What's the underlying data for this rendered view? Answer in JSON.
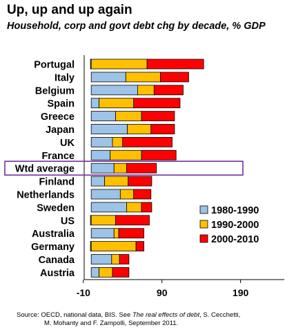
{
  "chart_data": {
    "type": "bar",
    "stacked": true,
    "orientation": "horizontal",
    "title": "Up, up and up again",
    "subtitle": "Household, corp and govt debt chg by decade, % GDP",
    "categories": [
      "Portugal",
      "Italy",
      "Belgium",
      "Spain",
      "Greece",
      "Japan",
      "UK",
      "France",
      "Wtd average",
      "Finland",
      "Netherlands",
      "Sweden",
      "US",
      "Australia",
      "Germany",
      "Canada",
      "Austria"
    ],
    "series": [
      {
        "name": "1980-1990",
        "color": "#9dc3e6",
        "values": [
          -1,
          44,
          59,
          10,
          31,
          46,
          27,
          24,
          29,
          17,
          37,
          45,
          -1,
          29,
          -1,
          26,
          10
        ]
      },
      {
        "name": "1990-2000",
        "color": "#ffc000",
        "values": [
          71,
          44,
          21,
          44,
          33,
          30,
          13,
          40,
          16,
          30,
          17,
          19,
          31,
          6,
          57,
          10,
          17
        ]
      },
      {
        "name": "2000-2010",
        "color": "#ff0000",
        "values": [
          72,
          36,
          37,
          59,
          42,
          30,
          63,
          44,
          38,
          30,
          22,
          13,
          43,
          32,
          10,
          12,
          21
        ]
      }
    ],
    "ticks": [
      "-10",
      "90",
      "190"
    ],
    "xlim": [
      -10,
      250
    ],
    "highlight": "Wtd average",
    "highlight_color": "#7030a0",
    "legend_position": "right"
  },
  "source": {
    "prefix": "Source: OECD, national data, BIS. See ",
    "italic": "The real effects of debt",
    "suffix": ", S. Cecchetti,",
    "line2": "M. Mohanty and F. Zampolli, September 2011."
  }
}
